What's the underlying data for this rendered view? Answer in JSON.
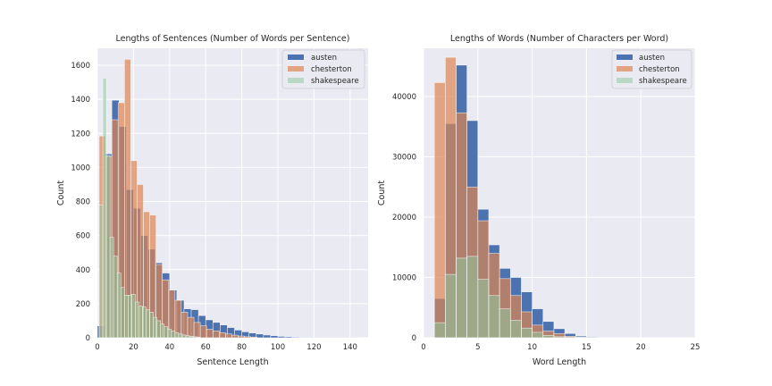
{
  "chart_data": [
    {
      "type": "bar",
      "title": "Lengths of Sentences (Number of Words per Sentence)",
      "xlabel": "Sentence Length",
      "ylabel": "Count",
      "xlim": [
        0,
        150
      ],
      "ylim": [
        0,
        1700
      ],
      "xticks": [
        0,
        20,
        40,
        60,
        80,
        100,
        120,
        140
      ],
      "yticks": [
        0,
        200,
        400,
        600,
        800,
        1000,
        1200,
        1400,
        1600
      ],
      "grid": true,
      "legend_position": "top-right",
      "series": [
        {
          "name": "austen",
          "color": "#4c72b0",
          "opacity": 1.0,
          "bin_width": 4,
          "bins": [
            [
              0,
              70
            ],
            [
              4,
              1080
            ],
            [
              8,
              1395
            ],
            [
              12,
              1240
            ],
            [
              16,
              870
            ],
            [
              20,
              760
            ],
            [
              24,
              600
            ],
            [
              28,
              520
            ],
            [
              32,
              440
            ],
            [
              36,
              380
            ],
            [
              40,
              280
            ],
            [
              44,
              220
            ],
            [
              48,
              170
            ],
            [
              52,
              165
            ],
            [
              56,
              130
            ],
            [
              60,
              105
            ],
            [
              64,
              90
            ],
            [
              68,
              75
            ],
            [
              72,
              60
            ],
            [
              76,
              45
            ],
            [
              80,
              35
            ],
            [
              84,
              28
            ],
            [
              88,
              22
            ],
            [
              92,
              16
            ],
            [
              96,
              12
            ],
            [
              100,
              8
            ],
            [
              104,
              6
            ],
            [
              108,
              4
            ],
            [
              112,
              3
            ],
            [
              116,
              2
            ],
            [
              120,
              2
            ],
            [
              124,
              1
            ],
            [
              128,
              1
            ],
            [
              132,
              1
            ],
            [
              136,
              1
            ],
            [
              140,
              1
            ]
          ]
        },
        {
          "name": "chesterton",
          "color": "#dd8452",
          "opacity": 0.7,
          "bin_width": 3.5,
          "bins": [
            [
              1,
              1185
            ],
            [
              4.5,
              1065
            ],
            [
              8,
              1280
            ],
            [
              11.5,
              1380
            ],
            [
              15,
              1635
            ],
            [
              18.5,
              1040
            ],
            [
              22,
              900
            ],
            [
              25.5,
              740
            ],
            [
              29,
              720
            ],
            [
              32.5,
              430
            ],
            [
              36,
              340
            ],
            [
              39.5,
              280
            ],
            [
              43,
              220
            ],
            [
              46.5,
              150
            ],
            [
              50,
              120
            ],
            [
              53.5,
              90
            ],
            [
              57,
              70
            ],
            [
              60.5,
              50
            ],
            [
              64,
              40
            ],
            [
              67.5,
              30
            ],
            [
              71,
              22
            ],
            [
              74.5,
              15
            ],
            [
              78,
              10
            ],
            [
              81.5,
              6
            ],
            [
              85,
              4
            ]
          ]
        },
        {
          "name": "shakespeare",
          "color": "#8fc9a0",
          "opacity": 0.55,
          "bin_width": 2,
          "bins": [
            [
              1,
              780
            ],
            [
              3,
              1525
            ],
            [
              5,
              1070
            ],
            [
              7,
              590
            ],
            [
              9,
              480
            ],
            [
              11,
              380
            ],
            [
              13,
              295
            ],
            [
              15,
              250
            ],
            [
              17,
              250
            ],
            [
              19,
              255
            ],
            [
              21,
              210
            ],
            [
              23,
              185
            ],
            [
              25,
              180
            ],
            [
              27,
              165
            ],
            [
              29,
              150
            ],
            [
              31,
              120
            ],
            [
              33,
              100
            ],
            [
              35,
              80
            ],
            [
              37,
              65
            ],
            [
              39,
              50
            ],
            [
              41,
              40
            ],
            [
              43,
              30
            ],
            [
              45,
              22
            ],
            [
              47,
              16
            ],
            [
              49,
              12
            ],
            [
              51,
              9
            ],
            [
              53,
              6
            ],
            [
              55,
              4
            ]
          ]
        }
      ]
    },
    {
      "type": "bar",
      "title": "Lengths of Words (Number of Characters per Word)",
      "xlabel": "Word Length",
      "ylabel": "Count",
      "xlim": [
        0,
        25
      ],
      "ylim": [
        0,
        48000
      ],
      "xticks": [
        0,
        5,
        10,
        15,
        20,
        25
      ],
      "yticks": [
        0,
        10000,
        20000,
        30000,
        40000
      ],
      "grid": true,
      "legend_position": "top-right",
      "series": [
        {
          "name": "austen",
          "color": "#4c72b0",
          "opacity": 1.0,
          "bin_width": 1,
          "bins": [
            [
              1,
              6500
            ],
            [
              2,
              35500
            ],
            [
              3,
              45200
            ],
            [
              4,
              36000
            ],
            [
              5,
              21300
            ],
            [
              6,
              15400
            ],
            [
              7,
              11500
            ],
            [
              8,
              10000
            ],
            [
              9,
              7600
            ],
            [
              10,
              4800
            ],
            [
              11,
              2700
            ],
            [
              12,
              1500
            ],
            [
              13,
              700
            ],
            [
              14,
              280
            ],
            [
              15,
              100
            ]
          ]
        },
        {
          "name": "chesterton",
          "color": "#dd8452",
          "opacity": 0.7,
          "bin_width": 1,
          "bins": [
            [
              1,
              42300
            ],
            [
              2,
              46500
            ],
            [
              3,
              37300
            ],
            [
              4,
              25000
            ],
            [
              5,
              19400
            ],
            [
              6,
              14000
            ],
            [
              7,
              9800
            ],
            [
              8,
              7000
            ],
            [
              9,
              4300
            ],
            [
              10,
              2100
            ],
            [
              11,
              1100
            ],
            [
              12,
              700
            ],
            [
              13,
              250
            ],
            [
              14,
              100
            ]
          ]
        },
        {
          "name": "shakespeare",
          "color": "#8fc9a0",
          "opacity": 0.55,
          "bin_width": 1,
          "bins": [
            [
              1,
              2500
            ],
            [
              2,
              10500
            ],
            [
              3,
              13200
            ],
            [
              4,
              13500
            ],
            [
              5,
              9700
            ],
            [
              6,
              7000
            ],
            [
              7,
              4800
            ],
            [
              8,
              2900
            ],
            [
              9,
              1600
            ],
            [
              10,
              900
            ],
            [
              11,
              400
            ],
            [
              12,
              170
            ],
            [
              13,
              60
            ]
          ]
        }
      ]
    }
  ]
}
